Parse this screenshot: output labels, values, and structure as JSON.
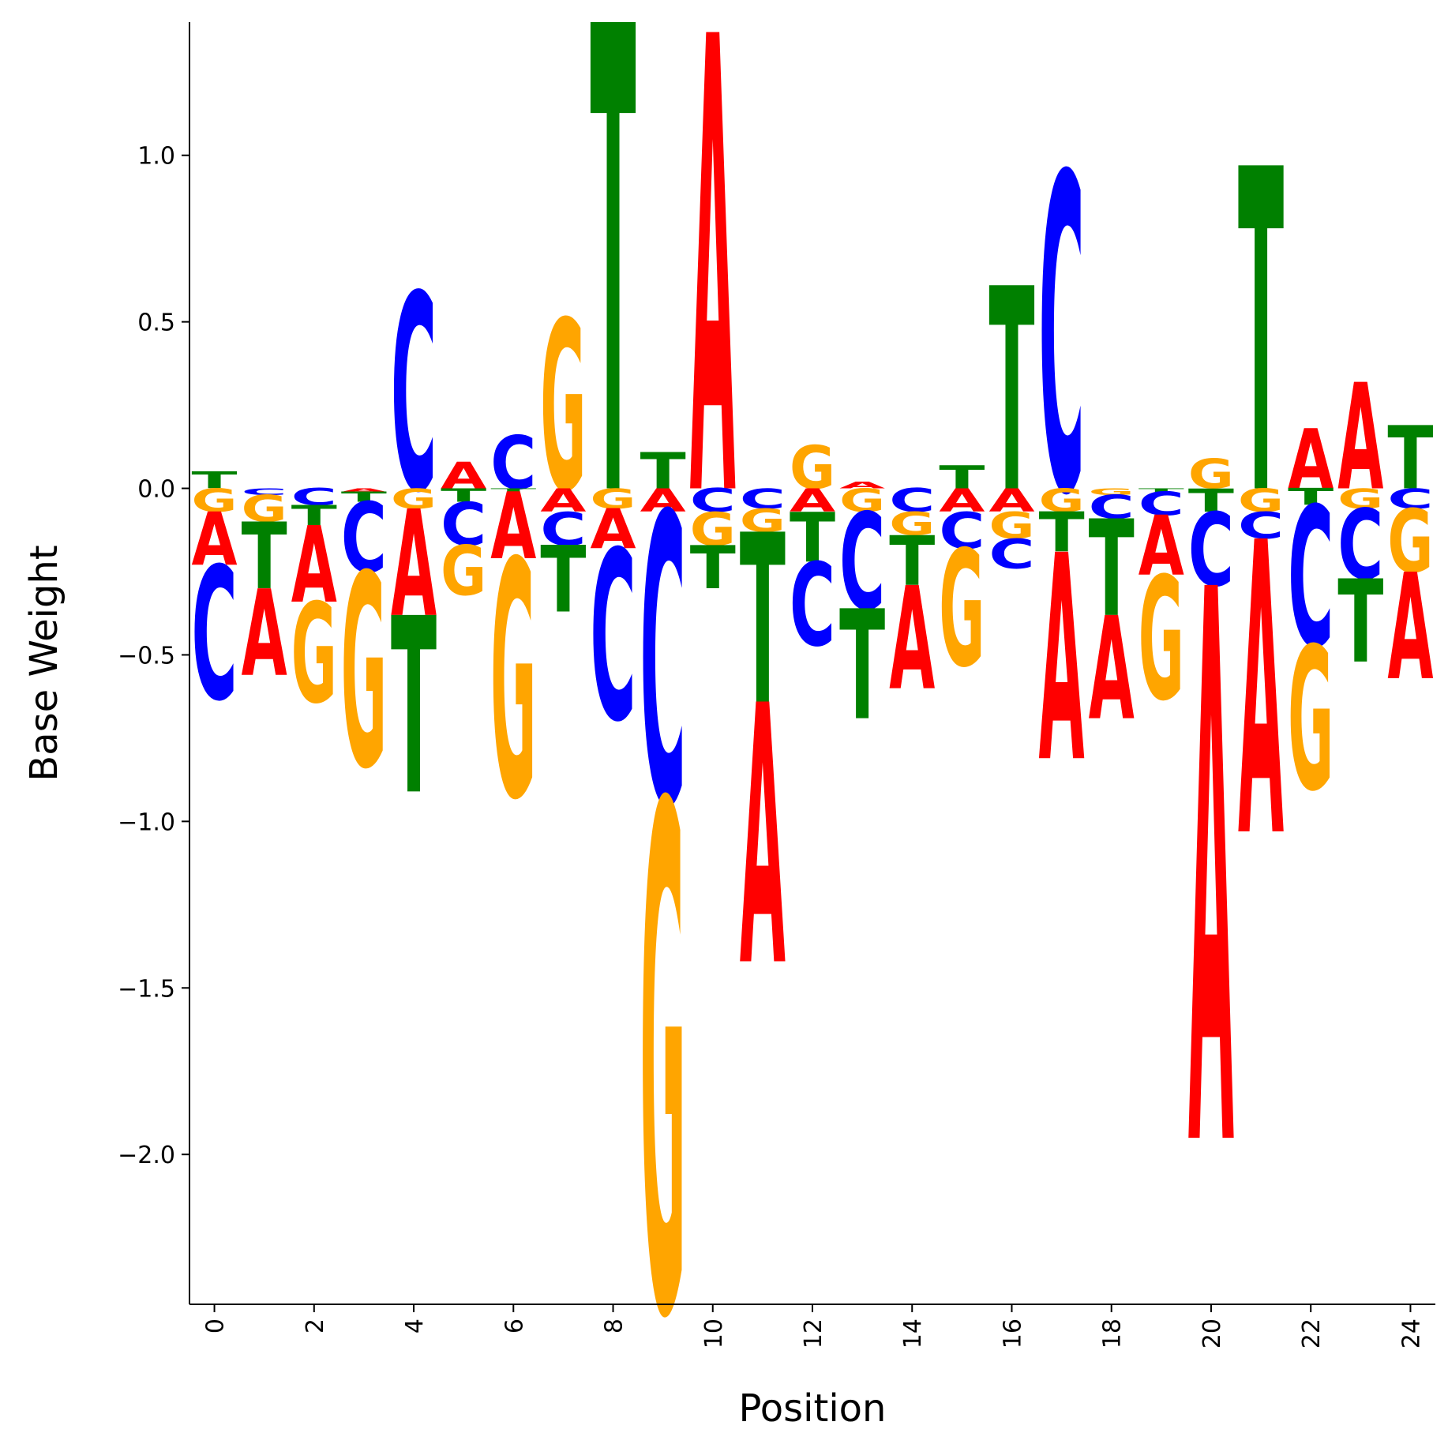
{
  "chart_data": {
    "type": "sequence-logo",
    "xlabel": "Position",
    "ylabel": "Base Weight",
    "xlim": [
      -0.5,
      24.5
    ],
    "ylim": [
      -2.45,
      1.4
    ],
    "xticks": [
      0,
      2,
      4,
      6,
      8,
      10,
      12,
      14,
      16,
      18,
      20,
      22,
      24
    ],
    "xtick_labels": [
      "0",
      "2",
      "4",
      "6",
      "8",
      "10",
      "12",
      "14",
      "16",
      "18",
      "20",
      "22",
      "24"
    ],
    "yticks": [
      1.0,
      0.5,
      0.0,
      -0.5,
      -1.0,
      -1.5,
      -2.0
    ],
    "ytick_labels": [
      "1.0",
      "0.5",
      "0.0",
      "−0.5",
      "−1.0",
      "−1.5",
      "−2.0"
    ],
    "colors": {
      "A": "#ff0000",
      "C": "#0000ff",
      "G": "#ffa500",
      "T": "#008000"
    },
    "positions": [
      {
        "pos": 0,
        "A": -0.16,
        "C": -0.4,
        "G": -0.07,
        "T": 0.05
      },
      {
        "pos": 1,
        "A": -0.26,
        "C": -0.02,
        "G": -0.08,
        "T": -0.2
      },
      {
        "pos": 2,
        "A": -0.23,
        "C": -0.05,
        "G": -0.3,
        "T": -0.06
      },
      {
        "pos": 3,
        "A": -0.01,
        "C": -0.21,
        "G": -0.58,
        "T": -0.03
      },
      {
        "pos": 4,
        "A": -0.32,
        "C": 0.59,
        "G": -0.06,
        "T": -0.53
      },
      {
        "pos": 5,
        "A": 0.08,
        "C": -0.13,
        "G": -0.15,
        "T": -0.04
      },
      {
        "pos": 6,
        "A": -0.2,
        "C": 0.16,
        "G": -0.71,
        "T": -0.01
      },
      {
        "pos": 7,
        "A": -0.07,
        "C": -0.1,
        "G": 0.51,
        "T": -0.2
      },
      {
        "pos": 8,
        "A": -0.12,
        "C": -0.51,
        "G": -0.06,
        "T": 1.4
      },
      {
        "pos": 9,
        "A": -0.07,
        "C": -0.87,
        "G": -1.52,
        "T": 0.11
      },
      {
        "pos": 10,
        "A": 1.37,
        "C": -0.07,
        "G": -0.1,
        "T": -0.13
      },
      {
        "pos": 11,
        "A": -0.78,
        "C": -0.06,
        "G": -0.07,
        "T": -0.51
      },
      {
        "pos": 12,
        "A": -0.07,
        "C": -0.25,
        "G": 0.13,
        "T": -0.15
      },
      {
        "pos": 13,
        "A": 0.02,
        "C": -0.29,
        "G": -0.07,
        "T": -0.33
      },
      {
        "pos": 14,
        "A": -0.31,
        "C": -0.07,
        "G": -0.07,
        "T": -0.15
      },
      {
        "pos": 15,
        "A": -0.07,
        "C": -0.11,
        "G": -0.35,
        "T": 0.07
      },
      {
        "pos": 16,
        "A": -0.07,
        "C": -0.09,
        "G": -0.08,
        "T": 0.61
      },
      {
        "pos": 17,
        "A": -0.62,
        "C": 0.95,
        "G": -0.07,
        "T": -0.12
      },
      {
        "pos": 18,
        "A": -0.31,
        "C": -0.07,
        "G": -0.02,
        "T": -0.29
      },
      {
        "pos": 19,
        "A": -0.18,
        "C": -0.07,
        "G": -0.37,
        "T": -0.01
      },
      {
        "pos": 20,
        "A": -1.66,
        "C": -0.22,
        "G": 0.09,
        "T": -0.07
      },
      {
        "pos": 21,
        "A": -0.88,
        "C": -0.08,
        "G": -0.07,
        "T": 0.97
      },
      {
        "pos": 22,
        "A": 0.18,
        "C": -0.42,
        "G": -0.43,
        "T": -0.05
      },
      {
        "pos": 23,
        "A": 0.32,
        "C": -0.21,
        "G": -0.06,
        "T": -0.25
      },
      {
        "pos": 24,
        "A": -0.32,
        "C": -0.06,
        "G": -0.19,
        "T": 0.19
      }
    ]
  }
}
